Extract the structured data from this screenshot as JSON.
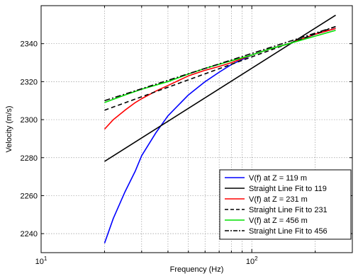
{
  "chart_data": {
    "type": "line",
    "xlabel": "Frequency (Hz)",
    "ylabel": "Velocity (m/s)",
    "xscale": "log",
    "xlim": [
      10,
      300
    ],
    "ylim": [
      2230,
      2360
    ],
    "x_ticks": [
      {
        "value": 10,
        "base": "10",
        "exp": "1"
      },
      {
        "value": 100,
        "base": "10",
        "exp": "2"
      }
    ],
    "y_ticks": [
      2240,
      2260,
      2280,
      2300,
      2320,
      2340
    ],
    "grid": true,
    "legend_position": "bottom-right",
    "series": [
      {
        "name": "V(f) at Z = 119 m",
        "color": "#0000ff",
        "dash": "solid",
        "x": [
          20,
          22,
          25,
          28,
          30,
          35,
          40,
          50,
          60,
          70,
          80,
          100,
          120,
          150,
          180,
          200,
          250
        ],
        "y": [
          2235,
          2248,
          2262,
          2273,
          2281,
          2293,
          2302,
          2313,
          2320,
          2325,
          2329,
          2334,
          2337,
          2340,
          2343,
          2345,
          2348
        ]
      },
      {
        "name": "Straight Line Fit to 119",
        "color": "#000000",
        "dash": "solid",
        "x": [
          20,
          250
        ],
        "y": [
          2278,
          2355
        ]
      },
      {
        "name": "V(f) at Z = 231 m",
        "color": "#ff0000",
        "dash": "solid",
        "x": [
          20,
          22,
          25,
          28,
          30,
          35,
          40,
          50,
          60,
          70,
          80,
          100,
          120,
          150,
          200,
          250
        ],
        "y": [
          2295,
          2300,
          2305,
          2309,
          2311,
          2315,
          2318,
          2323,
          2326,
          2328,
          2330,
          2334,
          2337,
          2340,
          2345,
          2348
        ]
      },
      {
        "name": "Straight Line Fit to 231",
        "color": "#000000",
        "dash": "dashed",
        "x": [
          20,
          250
        ],
        "y": [
          2305,
          2349
        ]
      },
      {
        "name": "V(f) at Z = 456 m",
        "color": "#00e000",
        "dash": "solid",
        "x": [
          20,
          25,
          30,
          40,
          50,
          60,
          80,
          100,
          120,
          150,
          200,
          250
        ],
        "y": [
          2309,
          2313,
          2316,
          2320,
          2324,
          2327,
          2331,
          2334,
          2337,
          2340,
          2344,
          2347
        ]
      },
      {
        "name": "Straight Line Fit to 456",
        "color": "#000000",
        "dash": "dashdot",
        "x": [
          20,
          250
        ],
        "y": [
          2310,
          2349
        ]
      }
    ]
  }
}
